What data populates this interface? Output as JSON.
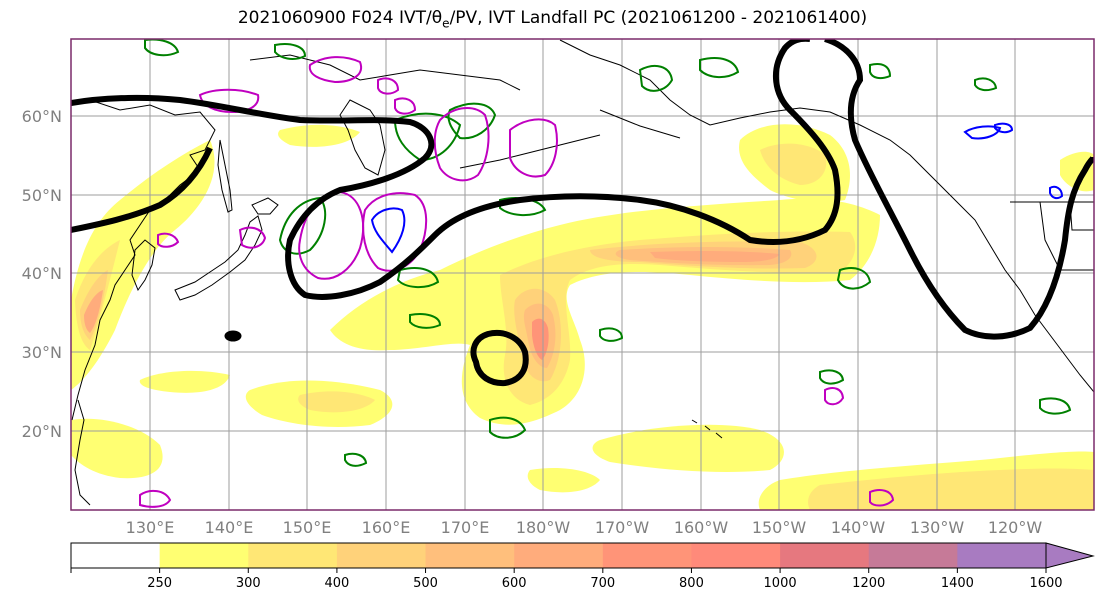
{
  "title": {
    "prefix": "2021060900 F024 IVT/",
    "theta": "θ",
    "theta_sub": "e",
    "suffix": "/PV, IVT Landfall PC (2021061200 - 2021061400)"
  },
  "map": {
    "lat_labels": [
      "60°N",
      "50°N",
      "40°N",
      "30°N",
      "20°N"
    ],
    "lat_values": [
      60,
      50,
      40,
      30,
      20
    ],
    "lon_labels": [
      "130°E",
      "140°E",
      "150°E",
      "160°E",
      "170°E",
      "180°W",
      "170°W",
      "160°W",
      "150°W",
      "140°W",
      "130°W",
      "120°W"
    ],
    "lat_range": [
      10,
      70
    ],
    "lon_range_east": [
      120,
      250
    ],
    "colors": {
      "land_outline": "#000000",
      "grid": "#9e9e9e",
      "frame": "#7a2a6a",
      "ivt_contour": "#000000",
      "theta_e_green": "#008000",
      "pv_magenta": "#c000c0",
      "pv_blue": "#0000ff"
    }
  },
  "colorbar": {
    "tick_labels": [
      "250",
      "300",
      "400",
      "500",
      "600",
      "700",
      "800",
      "1000",
      "1200",
      "1400",
      "1600"
    ],
    "colors": [
      "#ffffff",
      "#ffff72",
      "#ffe775",
      "#ffd27a",
      "#ffbf7c",
      "#ffac7c",
      "#ff9478",
      "#ff8a7a",
      "#e6787f",
      "#c67a98",
      "#a87bc1"
    ],
    "extend": "max"
  }
}
